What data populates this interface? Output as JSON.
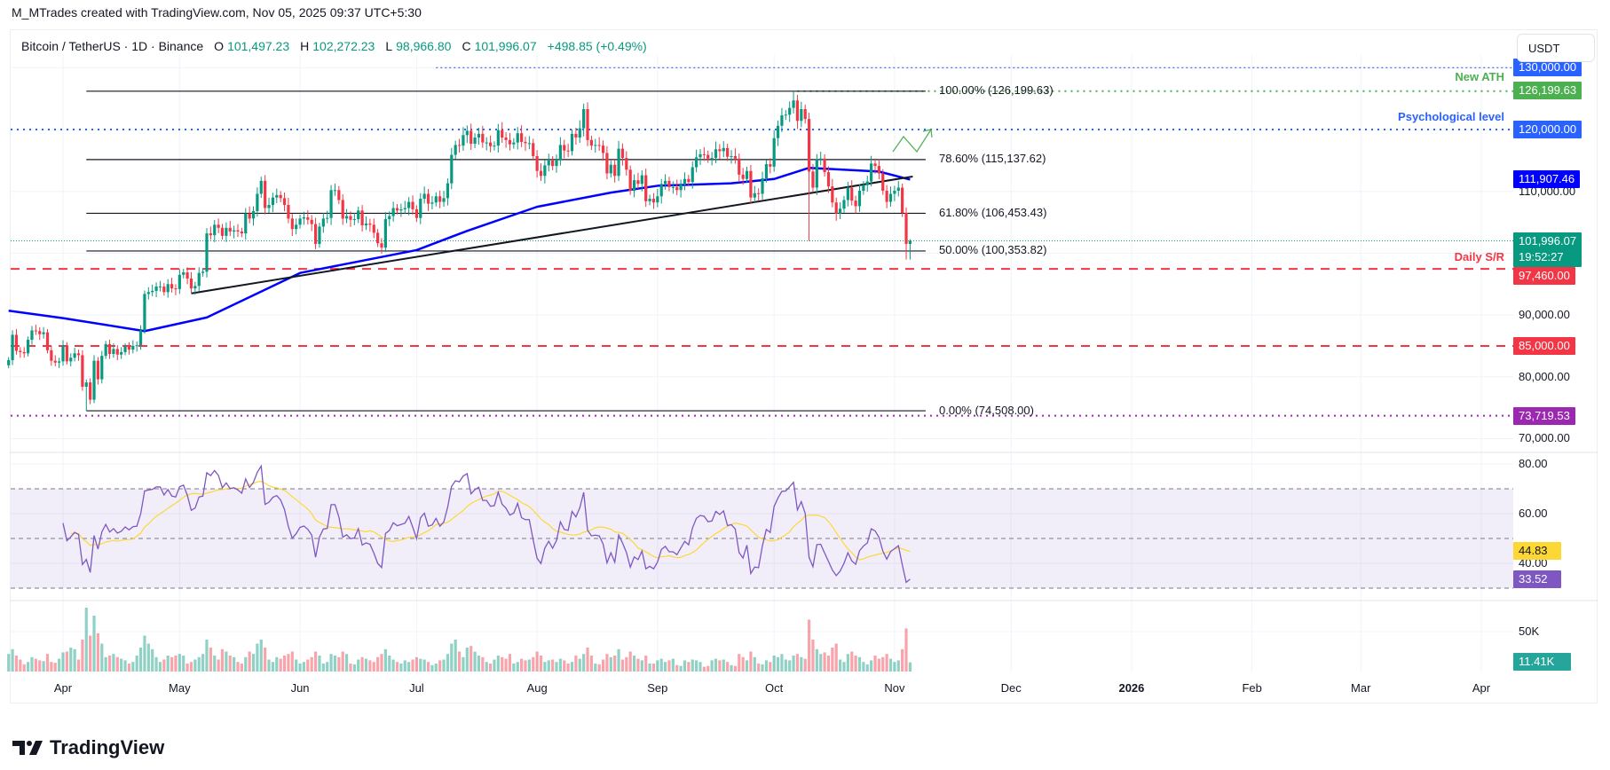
{
  "credit": "M_MTrades created with TradingView.com, Nov 05, 2025 09:37 UTC+5:30",
  "legend": {
    "symbol": "Bitcoin / TetherUS · 1D · Binance",
    "o_label": "O",
    "o": "101,497.23",
    "h_label": "H",
    "h": "102,272.23",
    "l_label": "L",
    "l": "98,966.80",
    "c_label": "C",
    "c": "101,996.07",
    "change": "+498.85 (+0.49%)"
  },
  "currency_button": "USDT",
  "logo_text": "TradingView",
  "colors": {
    "up": "#089981",
    "down": "#f23645",
    "ma": "#0000ff",
    "rsi": "#7e57c2",
    "rsi_ma": "#fdd835",
    "ath": "#4caf50",
    "psych": "#2962ff",
    "sr": "#f23645",
    "low": "#9c27b0"
  },
  "price_axis": {
    "ticks": [
      "130,000.00",
      "110,000.00",
      "90,000.00",
      "80,000.00",
      "70,000.00"
    ],
    "labels": {
      "ath": "126,199.63",
      "psych": "120,000.00",
      "ma": "111,907.46",
      "last": "101,996.07",
      "countdown": "19:52:27",
      "sr1": "97,460.00",
      "sr2": "85,000.00",
      "low": "73,719.53"
    }
  },
  "annotations": {
    "ath": "New ATH",
    "psych": "Psychological level",
    "sr": "Daily S/R"
  },
  "fib_labels": [
    "100.00% (126,199.63)",
    "78.60% (115,137.62)",
    "61.80% (106,453.43)",
    "50.00% (100,353.82)",
    "0.00% (74,508.00)"
  ],
  "rsi_axis": {
    "ticks": [
      "80.00",
      "60.00",
      "40.00"
    ],
    "rsi_ma": "44.83",
    "rsi": "33.52"
  },
  "volume_axis": {
    "tick": "50K",
    "last": "11.41K"
  },
  "time_axis": [
    {
      "label": "Apr",
      "date": "2025-04-01"
    },
    {
      "label": "May",
      "date": "2025-05-01"
    },
    {
      "label": "Jun",
      "date": "2025-06-01"
    },
    {
      "label": "Jul",
      "date": "2025-07-01"
    },
    {
      "label": "Aug",
      "date": "2025-08-01"
    },
    {
      "label": "Sep",
      "date": "2025-09-01"
    },
    {
      "label": "Oct",
      "date": "2025-10-01"
    },
    {
      "label": "Nov",
      "date": "2025-11-01"
    },
    {
      "label": "Dec",
      "date": "2025-12-01"
    },
    {
      "label": "2026",
      "date": "2026-01-01",
      "bold": true
    },
    {
      "label": "Feb",
      "date": "2026-02-01"
    },
    {
      "label": "Mar",
      "date": "2026-03-01"
    },
    {
      "label": "Apr",
      "date": "2026-04-01"
    }
  ],
  "chart_data": {
    "type": "candlestick",
    "start_date": "2025-03-18",
    "interval": "1D",
    "ylim": [
      67000,
      132000
    ],
    "close": [
      82700,
      86800,
      84200,
      84000,
      83800,
      86000,
      87500,
      87400,
      86900,
      87200,
      84300,
      82600,
      82300,
      82500,
      85100,
      82500,
      83100,
      83800,
      83500,
      78400,
      79100,
      76300,
      82600,
      79600,
      83400,
      85300,
      83700,
      84500,
      83600,
      84000,
      84900,
      84400,
      85000,
      85100,
      87500,
      93400,
      93700,
      93900,
      94600,
      94600,
      93700,
      95000,
      94300,
      94200,
      96500,
      96900,
      95900,
      94300,
      94700,
      96800,
      97000,
      103200,
      102900,
      104600,
      104100,
      102800,
      104100,
      103500,
      103700,
      103500,
      103200,
      106400,
      105600,
      106800,
      109600,
      111700,
      107300,
      107800,
      109000,
      109400,
      108900,
      107800,
      105600,
      103900,
      104600,
      105600,
      105800,
      105400,
      104700,
      101500,
      104300,
      105600,
      105700,
      110200,
      110200,
      108600,
      105600,
      106000,
      105400,
      105500,
      106900,
      104500,
      104800,
      104600,
      103300,
      101600,
      100900,
      105500,
      106000,
      107300,
      106900,
      107100,
      107300,
      108300,
      107100,
      105700,
      108800,
      109600,
      108000,
      108200,
      109200,
      108300,
      108900,
      111300,
      115900,
      117500,
      117400,
      119100,
      119800,
      117700,
      118700,
      119300,
      117900,
      117900,
      117300,
      117400,
      119900,
      118700,
      118300,
      117600,
      117900,
      119400,
      118000,
      117800,
      117800,
      115700,
      113300,
      112500,
      114200,
      115000,
      114100,
      115000,
      117500,
      116600,
      116500,
      119300,
      118700,
      120200,
      123300,
      118300,
      117400,
      117500,
      117400,
      116200,
      112900,
      114300,
      112500,
      116900,
      115400,
      113500,
      110100,
      111800,
      111200,
      112600,
      108400,
      108800,
      108200,
      109200,
      111200,
      111700,
      110700,
      110700,
      110200,
      111100,
      112000,
      111500,
      113900,
      115500,
      116000,
      115900,
      115300,
      115400,
      116800,
      116500,
      117000,
      115600,
      115700,
      115300,
      112700,
      112000,
      113300,
      109000,
      109700,
      109600,
      112100,
      114400,
      114000,
      118600,
      120600,
      122300,
      122400,
      123500,
      124700,
      121400,
      123300,
      121700,
      113200,
      110600,
      115200,
      115300,
      113100,
      110800,
      108200,
      106400,
      107200,
      108600,
      110600,
      108500,
      107600,
      110100,
      111000,
      111600,
      114500,
      114100,
      112900,
      110100,
      108300,
      109600,
      110100,
      110600,
      106500,
      101500,
      101996.07
    ],
    "extremes": [
      {
        "date": "2025-04-07",
        "low": 74508
      },
      {
        "date": "2025-08-14",
        "high": 124400
      },
      {
        "date": "2025-10-06",
        "high": 126199.63
      },
      {
        "date": "2025-10-10",
        "low": 102000
      },
      {
        "date": "2025-11-04",
        "low": 98966.8
      },
      {
        "date": "2025-11-05",
        "open": 101497.23,
        "high": 102272.23,
        "low": 98966.8
      }
    ],
    "volume_k": [
      22,
      28,
      20,
      15,
      9,
      12,
      18,
      16,
      14,
      13,
      22,
      12,
      11,
      16,
      24,
      25,
      30,
      28,
      15,
      40,
      80,
      45,
      70,
      48,
      35,
      18,
      20,
      22,
      18,
      16,
      14,
      10,
      12,
      20,
      30,
      45,
      35,
      28,
      18,
      12,
      15,
      20,
      18,
      20,
      22,
      20,
      10,
      12,
      15,
      18,
      22,
      40,
      30,
      20,
      15,
      28,
      25,
      20,
      18,
      12,
      10,
      18,
      25,
      22,
      35,
      40,
      30,
      15,
      12,
      18,
      16,
      20,
      22,
      25,
      15,
      10,
      12,
      15,
      18,
      25,
      20,
      10,
      12,
      22,
      20,
      18,
      25,
      22,
      10,
      9,
      15,
      18,
      16,
      14,
      12,
      18,
      22,
      28,
      20,
      15,
      12,
      10,
      14,
      12,
      15,
      18,
      16,
      15,
      12,
      8,
      10,
      14,
      15,
      22,
      35,
      40,
      25,
      18,
      30,
      32,
      25,
      20,
      18,
      12,
      10,
      15,
      20,
      18,
      16,
      22,
      10,
      12,
      16,
      14,
      15,
      18,
      25,
      20,
      12,
      14,
      15,
      12,
      16,
      14,
      10,
      12,
      20,
      16,
      22,
      30,
      20,
      10,
      9,
      15,
      22,
      18,
      20,
      28,
      15,
      18,
      25,
      20,
      16,
      14,
      20,
      10,
      10,
      14,
      16,
      12,
      14,
      16,
      8,
      7,
      14,
      12,
      15,
      14,
      12,
      6,
      7,
      14,
      16,
      14,
      15,
      12,
      8,
      7,
      22,
      18,
      14,
      25,
      18,
      10,
      9,
      14,
      12,
      20,
      18,
      22,
      15,
      14,
      20,
      22,
      18,
      16,
      65,
      40,
      28,
      22,
      24,
      20,
      30,
      35,
      15,
      12,
      22,
      25,
      20,
      18,
      12,
      9,
      14,
      20,
      16,
      18,
      22,
      16,
      12,
      14,
      28,
      54,
      11.41
    ],
    "moving_average": [
      {
        "date": "2025-03-18",
        "value": 90700
      },
      {
        "date": "2025-04-01",
        "value": 89500
      },
      {
        "date": "2025-04-22",
        "value": 87400
      },
      {
        "date": "2025-05-08",
        "value": 89600
      },
      {
        "date": "2025-06-01",
        "value": 96800
      },
      {
        "date": "2025-07-01",
        "value": 100500
      },
      {
        "date": "2025-07-14",
        "value": 103600
      },
      {
        "date": "2025-08-01",
        "value": 107500
      },
      {
        "date": "2025-08-20",
        "value": 109800
      },
      {
        "date": "2025-09-01",
        "value": 110900
      },
      {
        "date": "2025-09-20",
        "value": 111300
      },
      {
        "date": "2025-10-01",
        "value": 112000
      },
      {
        "date": "2025-10-10",
        "value": 113800
      },
      {
        "date": "2025-10-28",
        "value": 113200
      },
      {
        "date": "2025-11-05",
        "value": 111907.46
      }
    ],
    "trendline": [
      {
        "date": "2025-05-04",
        "value": 93500
      },
      {
        "date": "2025-11-05",
        "value": 112400
      }
    ],
    "fib_levels": [
      126199.63,
      115137.62,
      106453.43,
      100353.82,
      74508.0
    ],
    "fib_range": [
      "2025-04-07",
      "2025-11-09"
    ],
    "levels": {
      "ath": {
        "value": 126199.63,
        "from": "2025-10-07",
        "style": "dotted"
      },
      "upper": {
        "value": 130000,
        "from": "2025-07-06",
        "style": "dotted"
      },
      "psych": {
        "value": 120000,
        "style": "dotted"
      },
      "sr1": {
        "value": 97460,
        "style": "dashed"
      },
      "sr2": {
        "value": 85000,
        "style": "dashed"
      },
      "low": {
        "value": 73719.53,
        "style": "dotted"
      },
      "last": {
        "value": 101996.07,
        "style": "dotted"
      }
    },
    "rsi": {
      "period": 14,
      "ma_period": 14,
      "bands": [
        70,
        50,
        30
      ],
      "ylim": [
        25,
        85
      ]
    }
  }
}
